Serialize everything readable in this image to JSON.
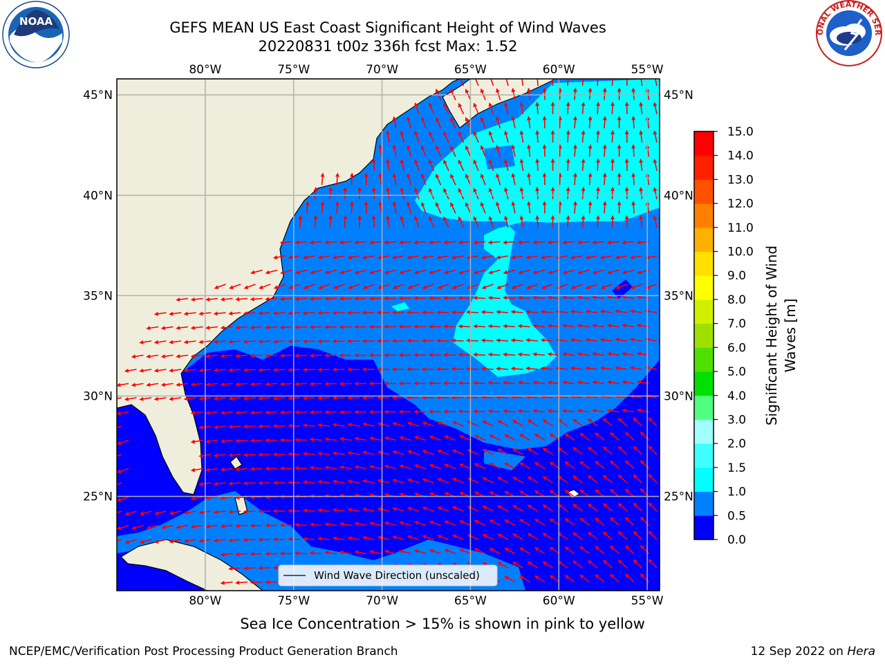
{
  "title_line1": "GEFS MEAN US East Coast Significant Height of Wind Waves",
  "title_line2": "20220831 t00z 336h fcst   Max: 1.52",
  "logos": {
    "left": {
      "name": "noaa-logo",
      "text": "NOAA",
      "ring_text": "NATIONAL OCEANIC AND ATMOSPHERIC ADMINISTRATION · U.S. DEPARTMENT OF COMMERCE"
    },
    "right": {
      "name": "nws-logo",
      "ring_text": "NATIONAL WEATHER SERVICE"
    }
  },
  "map": {
    "lon_ticks": [
      "80°W",
      "75°W",
      "70°W",
      "65°W",
      "60°W",
      "55°W"
    ],
    "lat_ticks": [
      "45°N",
      "40°N",
      "35°N",
      "30°N",
      "25°N"
    ],
    "lon_values": [
      -80,
      -75,
      -70,
      -65,
      -60,
      -55
    ],
    "lat_values": [
      45,
      40,
      35,
      30,
      25
    ],
    "extent": {
      "lon_min": -85,
      "lon_max": -54.3,
      "lat_min": 20.3,
      "lat_max": 45.8
    },
    "colors": {
      "land": "#efeedc",
      "band_0_0_5": "#0000ff",
      "band_0_5_1_0": "#0080ff",
      "band_1_0_1_5": "#00ffff",
      "arrow": "#ff0000",
      "grid": "#b0b0b0"
    },
    "legend_label": "Wind Wave Direction (unscaled)"
  },
  "colorbar": {
    "label": "Significant Height of Wind Waves [m]",
    "label_line1": "Significant Height of Wind",
    "label_line2": "Waves [m]",
    "ticks": [
      "0.0",
      "0.5",
      "1.0",
      "1.5",
      "2.0",
      "3.0",
      "4.0",
      "5.0",
      "6.0",
      "7.0",
      "8.0",
      "9.0",
      "10.0",
      "11.0",
      "12.0",
      "13.0",
      "14.0",
      "15.0"
    ],
    "colors": [
      "#0000ff",
      "#0080ff",
      "#00ffff",
      "#40ffff",
      "#a0ffff",
      "#50ff80",
      "#00e000",
      "#50e000",
      "#a0e000",
      "#d0f000",
      "#ffff00",
      "#ffe000",
      "#ffb000",
      "#ff8000",
      "#ff5000",
      "#ff2000",
      "#ff0000"
    ]
  },
  "footer": {
    "note": "Sea Ice Concentration > 15% is shown in pink to yellow",
    "left": "NCEP/EMC/Verification Post Processing Product Generation Branch",
    "right_date": "12 Sep 2022 on ",
    "right_host": "Hera"
  }
}
